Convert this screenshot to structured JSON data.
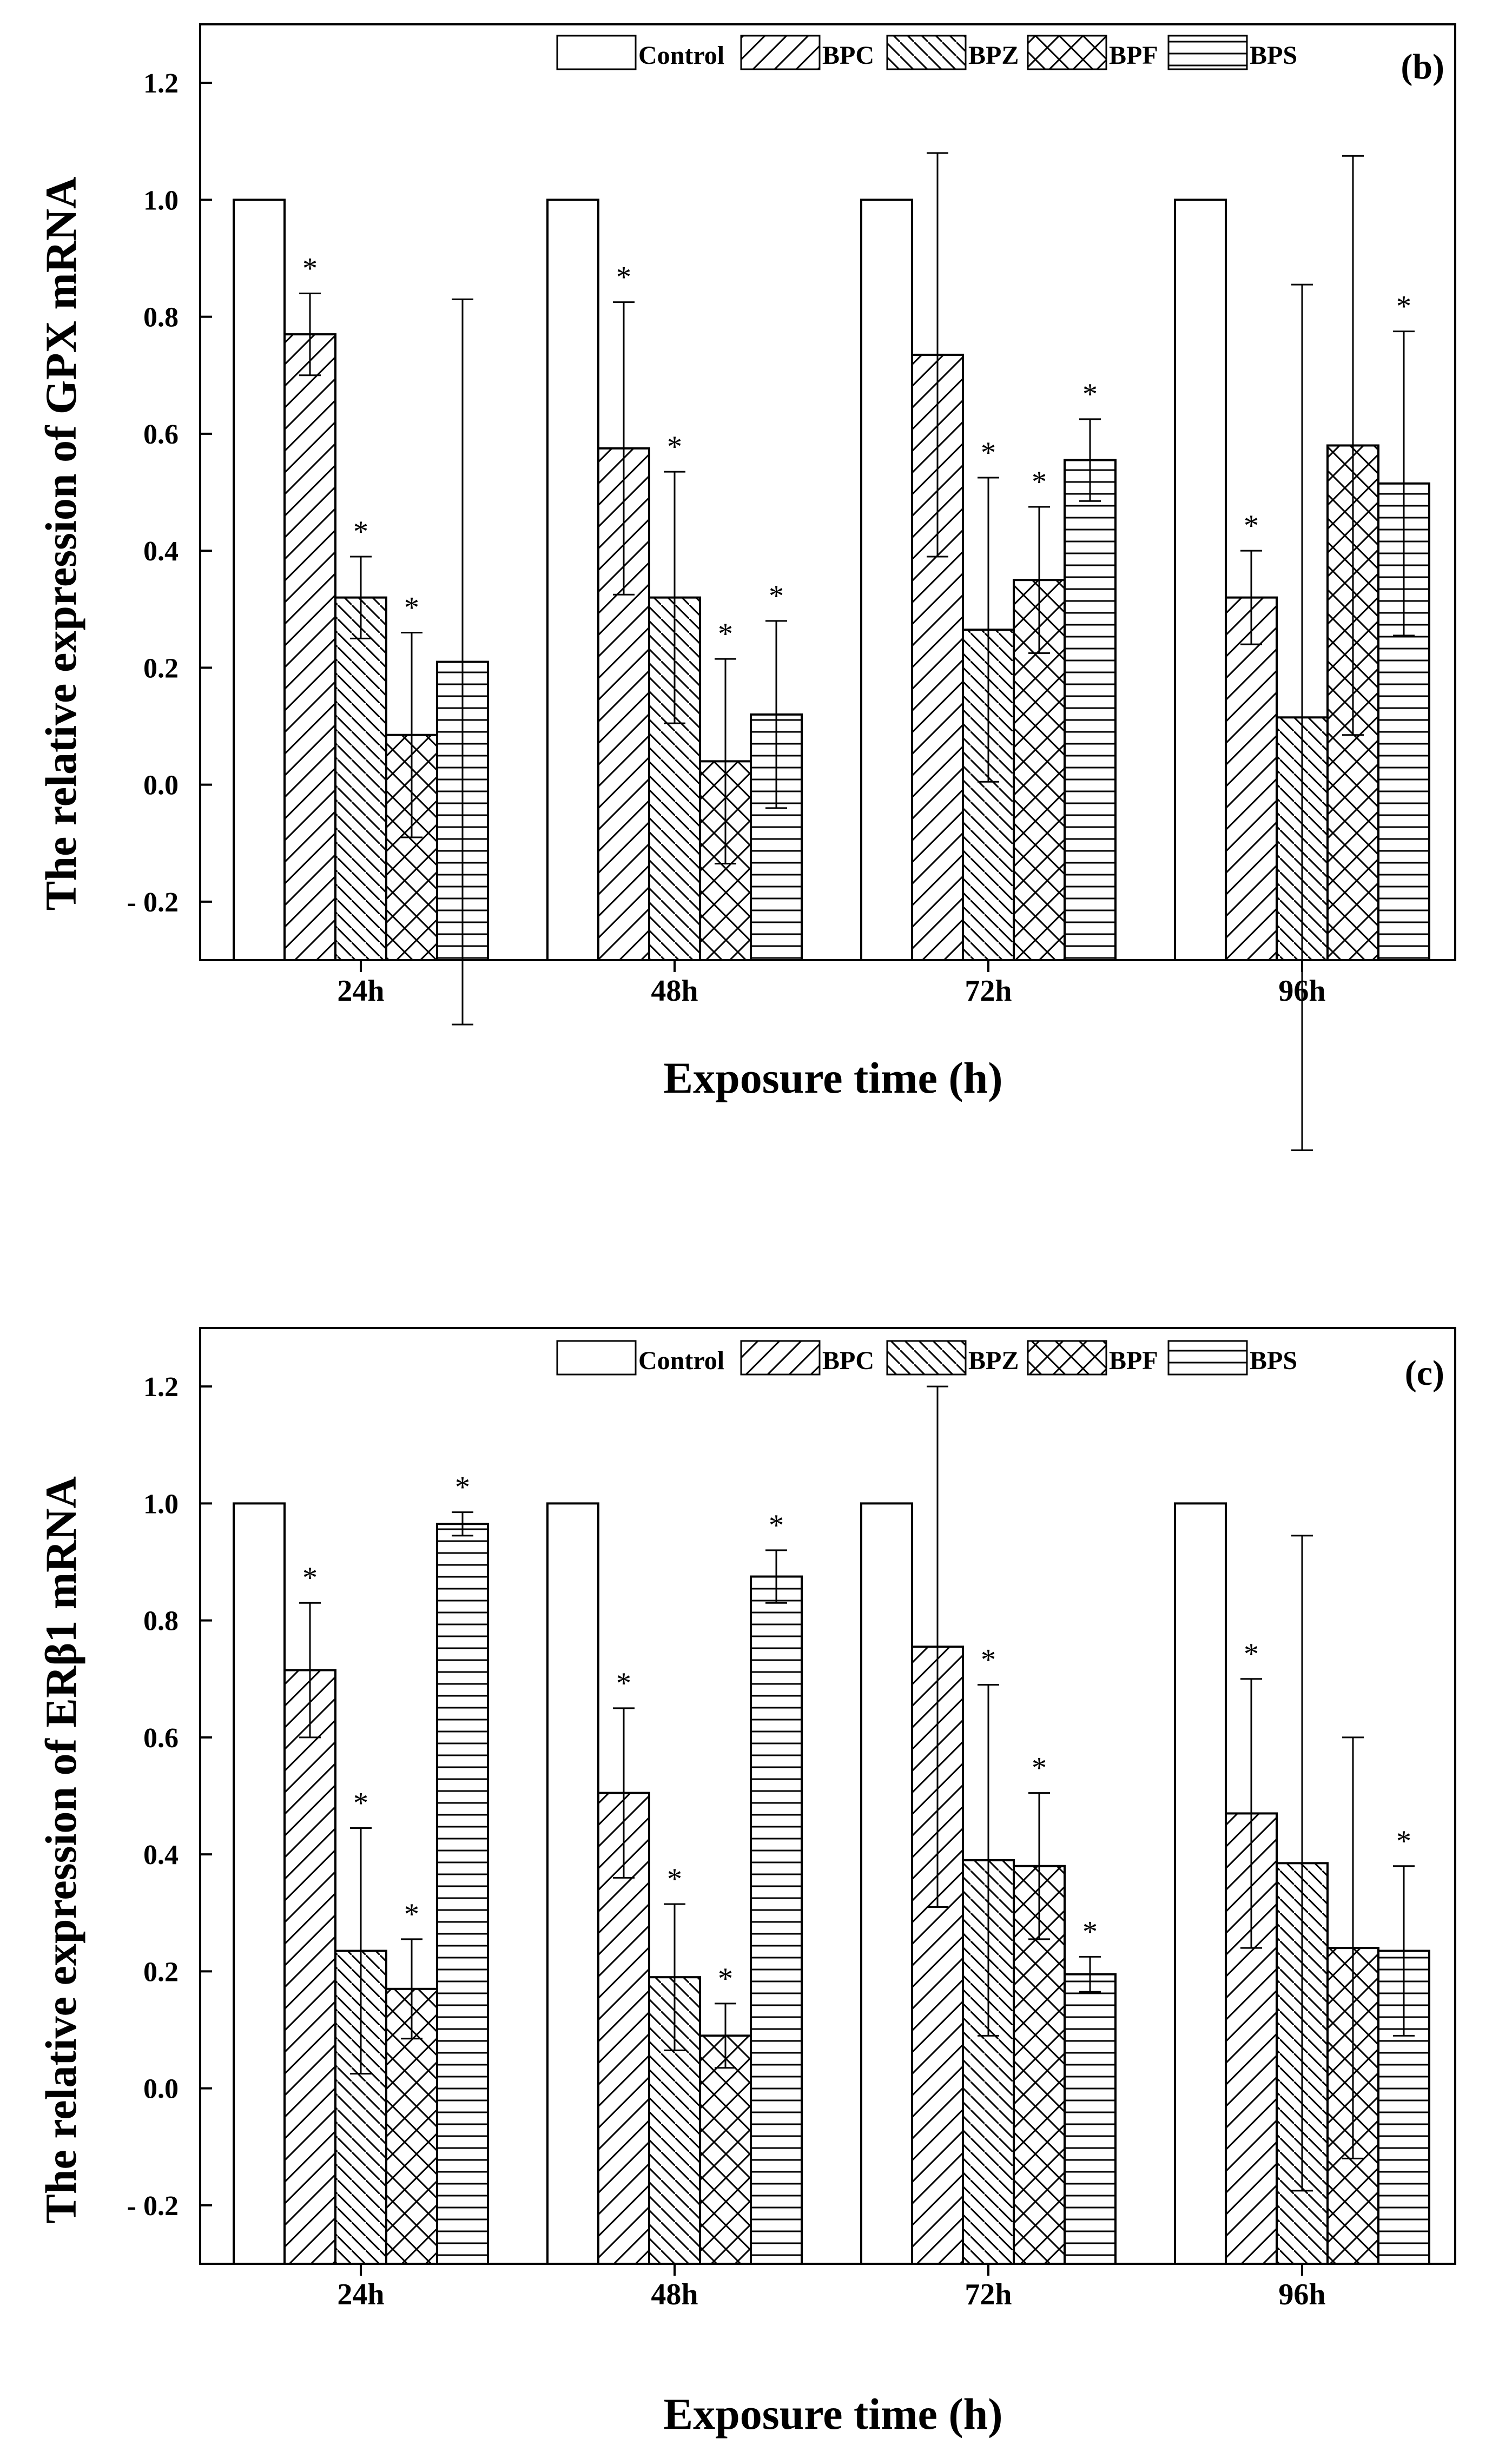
{
  "figure": {
    "panels": [
      "b",
      "c"
    ]
  },
  "chart_data": [
    {
      "type": "bar",
      "panel_label": "(b)",
      "title": "",
      "xlabel": "Exposure time (h)",
      "ylabel": "The relative expression of GPX mRNA",
      "categories": [
        "24h",
        "48h",
        "72h",
        "96h"
      ],
      "ylim": [
        -0.3,
        1.3
      ],
      "yticks": [
        -0.2,
        0.0,
        0.2,
        0.4,
        0.6,
        0.8,
        1.0,
        1.2
      ],
      "ytick_labels": [
        "- 0.2",
        "0.0",
        "0.2",
        "0.4",
        "0.6",
        "0.8",
        "1.0",
        "1.2"
      ],
      "legend_position": "top",
      "significance_marker": "*",
      "series": [
        {
          "name": "Control",
          "pattern": "none",
          "values": [
            1.0,
            1.0,
            1.0,
            1.0
          ],
          "errors": [
            null,
            null,
            null,
            null
          ],
          "significant": [
            false,
            false,
            false,
            false
          ]
        },
        {
          "name": "BPC",
          "pattern": "forward-diagonal",
          "values": [
            0.77,
            0.575,
            0.735,
            0.32
          ],
          "errors": [
            0.07,
            0.25,
            0.345,
            0.08
          ],
          "significant": [
            true,
            true,
            false,
            true
          ]
        },
        {
          "name": "BPZ",
          "pattern": "back-diagonal",
          "values": [
            0.32,
            0.32,
            0.265,
            0.115
          ],
          "errors": [
            0.07,
            0.215,
            0.26,
            0.74
          ],
          "significant": [
            true,
            true,
            true,
            false
          ]
        },
        {
          "name": "BPF",
          "pattern": "crosshatch",
          "values": [
            0.085,
            0.04,
            0.35,
            0.58
          ],
          "errors": [
            0.175,
            0.175,
            0.125,
            0.495
          ],
          "significant": [
            true,
            true,
            true,
            false
          ]
        },
        {
          "name": "BPS",
          "pattern": "horizontal",
          "values": [
            0.21,
            0.12,
            0.555,
            0.515
          ],
          "errors": [
            0.62,
            0.16,
            0.07,
            0.26
          ],
          "significant": [
            false,
            true,
            true,
            true
          ]
        }
      ]
    },
    {
      "type": "bar",
      "panel_label": "(c)",
      "title": "",
      "xlabel": "Exposure time (h)",
      "ylabel": "The relative expression of ERβ1 mRNA",
      "categories": [
        "24h",
        "48h",
        "72h",
        "96h"
      ],
      "ylim": [
        -0.3,
        1.3
      ],
      "yticks": [
        -0.2,
        0.0,
        0.2,
        0.4,
        0.6,
        0.8,
        1.0,
        1.2
      ],
      "ytick_labels": [
        "- 0.2",
        "0.0",
        "0.2",
        "0.4",
        "0.6",
        "0.8",
        "1.0",
        "1.2"
      ],
      "legend_position": "top",
      "significance_marker": "*",
      "series": [
        {
          "name": "Control",
          "pattern": "none",
          "values": [
            1.0,
            1.0,
            1.0,
            1.0
          ],
          "errors": [
            null,
            null,
            null,
            null
          ],
          "significant": [
            false,
            false,
            false,
            false
          ]
        },
        {
          "name": "BPC",
          "pattern": "forward-diagonal",
          "values": [
            0.715,
            0.505,
            0.755,
            0.47
          ],
          "errors": [
            0.115,
            0.145,
            0.445,
            0.23
          ],
          "significant": [
            true,
            true,
            false,
            true
          ]
        },
        {
          "name": "BPZ",
          "pattern": "back-diagonal",
          "values": [
            0.235,
            0.19,
            0.39,
            0.385
          ],
          "errors": [
            0.21,
            0.125,
            0.3,
            0.56
          ],
          "significant": [
            true,
            true,
            true,
            false
          ]
        },
        {
          "name": "BPF",
          "pattern": "crosshatch",
          "values": [
            0.17,
            0.09,
            0.38,
            0.24
          ],
          "errors": [
            0.085,
            0.055,
            0.125,
            0.36
          ],
          "significant": [
            true,
            true,
            true,
            false
          ]
        },
        {
          "name": "BPS",
          "pattern": "horizontal",
          "values": [
            0.965,
            0.875,
            0.195,
            0.235
          ],
          "errors": [
            0.02,
            0.045,
            0.03,
            0.145
          ],
          "significant": [
            true,
            true,
            true,
            true
          ]
        }
      ]
    }
  ]
}
